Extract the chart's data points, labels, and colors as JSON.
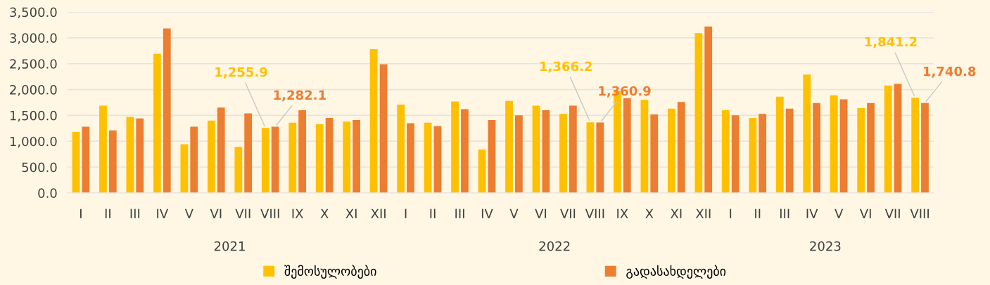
{
  "chart_data": {
    "type": "bar",
    "categories": [
      "I",
      "II",
      "III",
      "IV",
      "V",
      "VI",
      "VII",
      "VIII",
      "IX",
      "X",
      "XI",
      "XII",
      "I",
      "II",
      "III",
      "IV",
      "V",
      "VI",
      "VII",
      "VIII",
      "IX",
      "X",
      "XI",
      "XII",
      "I",
      "II",
      "III",
      "IV",
      "V",
      "VI",
      "VII",
      "VIII"
    ],
    "series": [
      {
        "name": "შემოსულობები",
        "color": "#ffc000",
        "values": [
          1180,
          1690,
          1470,
          2690,
          940,
          1400,
          890,
          1255.9,
          1360,
          1330,
          1380,
          2780,
          1710,
          1360,
          1770,
          840,
          1780,
          1690,
          1530,
          1366.2,
          1970,
          1800,
          1630,
          3090,
          1600,
          1450,
          1860,
          2290,
          1890,
          1640,
          2080,
          1841.2
        ],
        "value_labels": [
          null,
          null,
          null,
          null,
          null,
          null,
          null,
          "1,255.9",
          null,
          null,
          null,
          null,
          null,
          null,
          null,
          null,
          null,
          null,
          null,
          "1,366.2",
          null,
          null,
          null,
          null,
          null,
          null,
          null,
          null,
          null,
          null,
          null,
          "1,841.2"
        ]
      },
      {
        "name": "გადასახდელები",
        "color": "#ed7d31",
        "values": [
          1280,
          1210,
          1440,
          3180,
          1280,
          1650,
          1540,
          1282.1,
          1600,
          1450,
          1410,
          2490,
          1350,
          1290,
          1620,
          1410,
          1500,
          1600,
          1690,
          1360.9,
          1830,
          1520,
          1760,
          3220,
          1500,
          1530,
          1630,
          1740,
          1810,
          1740,
          2110,
          1740.8
        ],
        "value_labels": [
          null,
          null,
          null,
          null,
          null,
          null,
          null,
          "1,282.1",
          null,
          null,
          null,
          null,
          null,
          null,
          null,
          null,
          null,
          null,
          null,
          "1,360.9",
          null,
          null,
          null,
          null,
          null,
          null,
          null,
          null,
          null,
          null,
          null,
          "1,740.8"
        ]
      }
    ],
    "annotations": [
      "2021",
      "2022",
      "2023"
    ],
    "ylim": [
      0,
      3500
    ],
    "yticks": [
      {
        "value": 0,
        "label": "0.0"
      },
      {
        "value": 500,
        "label": "500.0"
      },
      {
        "value": 1000,
        "label": "1,000.0"
      },
      {
        "value": 1500,
        "label": "1,500.0"
      },
      {
        "value": 2000,
        "label": "2,000.0"
      },
      {
        "value": 2500,
        "label": "2,500.0"
      },
      {
        "value": 3000,
        "label": "3,000.0"
      },
      {
        "value": 3500,
        "label": "3,500.0"
      }
    ],
    "grid": "y",
    "legend": "bottom"
  }
}
